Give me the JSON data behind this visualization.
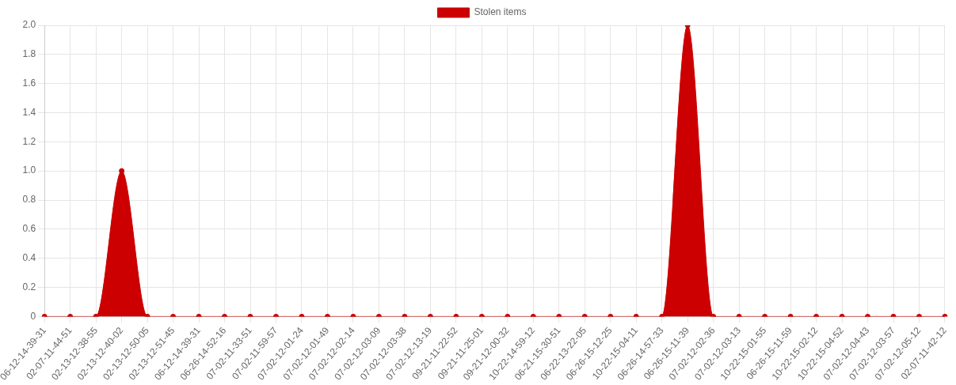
{
  "chart_data": {
    "type": "area",
    "categories": [
      "06-12-14-39-31",
      "02-07-11-44-51",
      "02-13-12-38-55",
      "02-13-12-40-02",
      "02-13-12-50-05",
      "02-13-12-51-45",
      "06-12-14-39-31",
      "06-26-14-52-16",
      "07-02-11-33-51",
      "07-02-11-59-57",
      "07-02-12-01-24",
      "07-02-12-01-49",
      "07-02-12-02-14",
      "07-02-12-03-09",
      "07-02-12-03-38",
      "07-02-12-13-19",
      "09-21-11-22-52",
      "09-21-11-25-01",
      "09-21-12-00-32",
      "10-22-14-59-12",
      "06-21-15-30-51",
      "06-22-13-22-05",
      "06-26-15-12-25",
      "10-22-15-04-11",
      "06-26-14-57-33",
      "06-26-15-11-39",
      "07-02-12-02-36",
      "07-02-12-03-13",
      "10-22-15-01-55",
      "06-26-15-11-59",
      "10-22-15-02-12",
      "10-22-15-04-52",
      "07-02-12-04-43",
      "07-02-12-03-57",
      "07-02-12-05-12",
      "02-07-11-42-12"
    ],
    "series": [
      {
        "name": "Stolen items",
        "color": "#cc0000",
        "values": [
          0,
          0,
          0,
          1,
          0,
          0,
          0,
          0,
          0,
          0,
          0,
          0,
          0,
          0,
          0,
          0,
          0,
          0,
          0,
          0,
          0,
          0,
          0,
          0,
          0,
          2,
          0,
          0,
          0,
          0,
          0,
          0,
          0,
          0,
          0,
          0
        ]
      }
    ],
    "ylim": [
      0,
      2
    ],
    "yticks": [
      0,
      0.2,
      0.4,
      0.6,
      0.8,
      {
        "value": 1,
        "label": "1.0"
      },
      1.2,
      1.4,
      1.6,
      1.8,
      {
        "value": 2,
        "label": "2.0"
      }
    ],
    "grid": true,
    "legend": "top",
    "marker": "circle"
  }
}
